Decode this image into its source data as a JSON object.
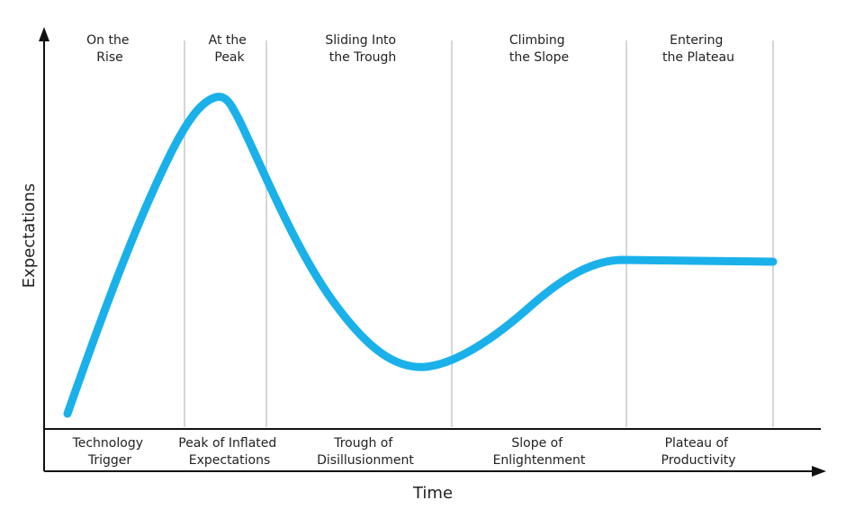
{
  "axes": {
    "x_title": "Time",
    "y_title": "Expectations"
  },
  "top_labels": [
    [
      "On the",
      "Rise"
    ],
    [
      "At the",
      "Peak"
    ],
    [
      "Sliding Into",
      "the Trough"
    ],
    [
      "Climbing",
      "the Slope"
    ],
    [
      "Entering",
      "the Plateau"
    ]
  ],
  "phases": [
    [
      "Technology",
      "Trigger"
    ],
    [
      "Peak of Inflated",
      "Expectations"
    ],
    [
      "Trough of",
      "Disillusionment"
    ],
    [
      "Slope of",
      "Enlightenment"
    ],
    [
      "Plateau of",
      "Productivity"
    ]
  ],
  "colors": {
    "curve": "#1ab1ea",
    "axis": "#111111",
    "divider": "#c8c8c8"
  }
}
